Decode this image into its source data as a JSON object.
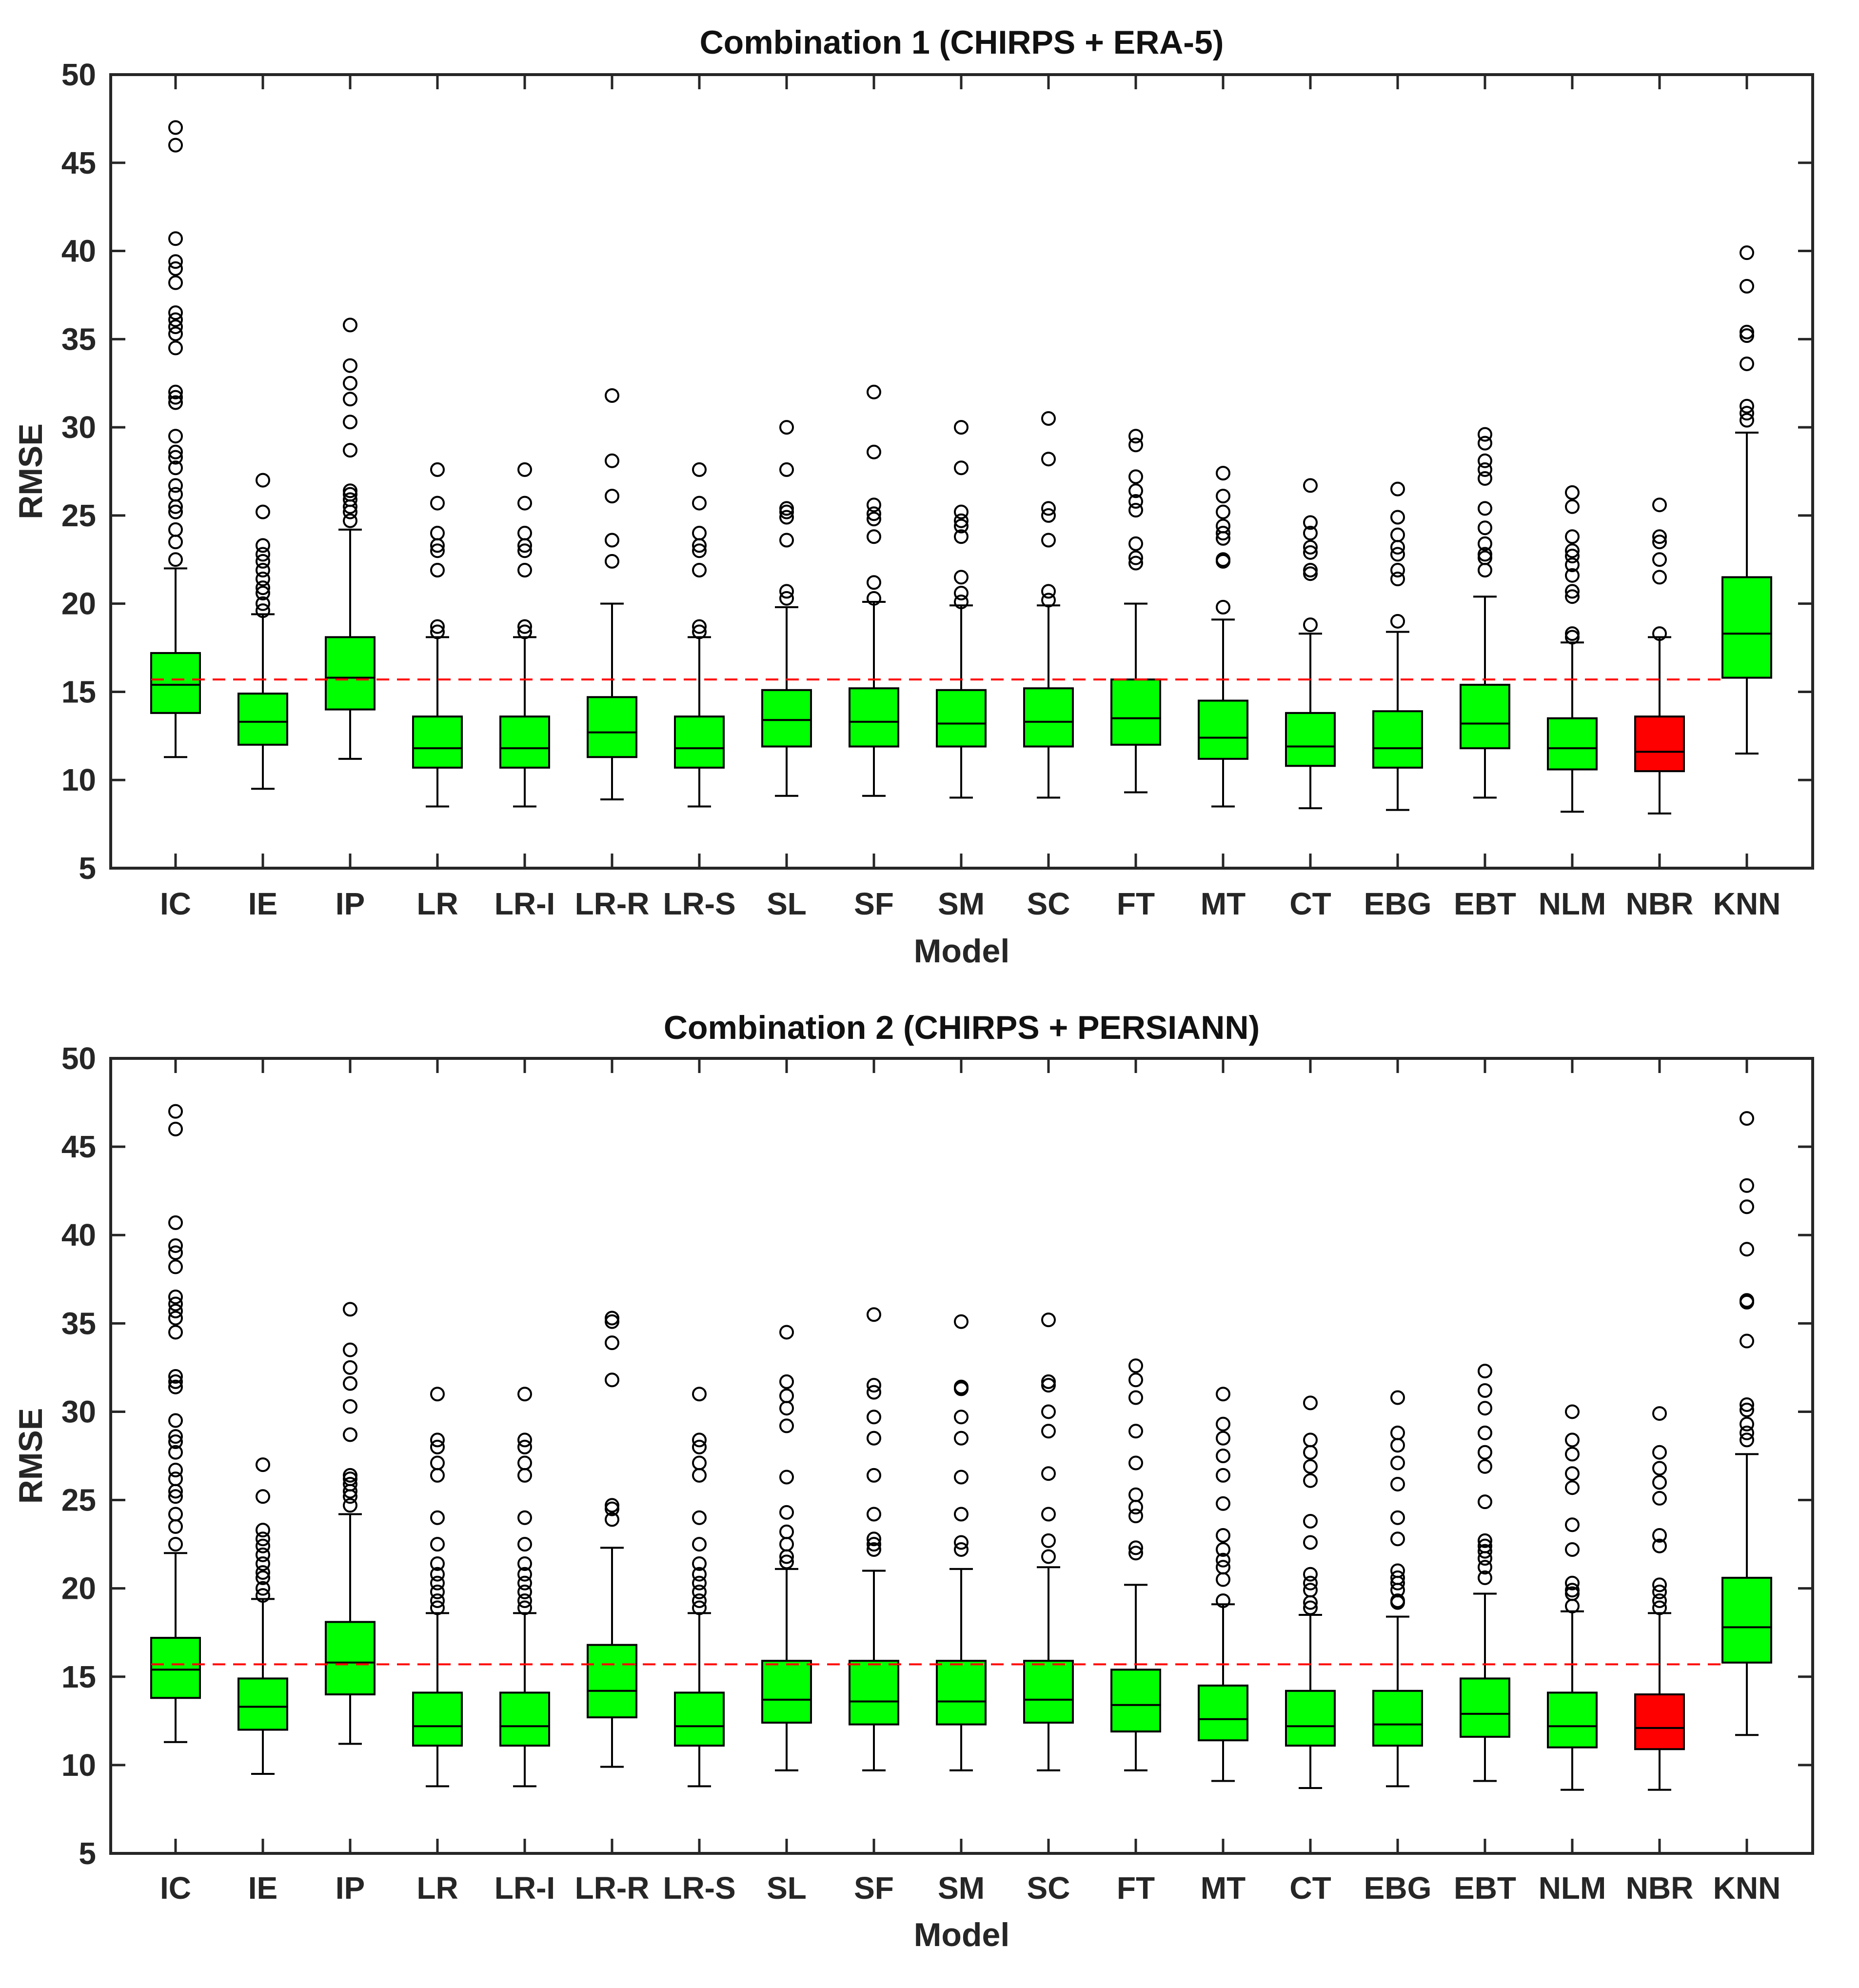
{
  "chart_data": [
    {
      "type": "boxplot",
      "title": "Combination 1 (CHIRPS + ERA-5)",
      "xlabel": "Model",
      "ylabel": "RMSE",
      "ylim": [
        5,
        50
      ],
      "yticks": [
        5,
        10,
        15,
        20,
        25,
        30,
        35,
        40,
        45,
        50
      ],
      "reference_line": 15.7,
      "colors": {
        "box": "#00ff00",
        "highlight": "#ff0000",
        "reference_line": "#ff0000"
      },
      "categories": [
        "IC",
        "IE",
        "IP",
        "LR",
        "LR-I",
        "LR-R",
        "LR-S",
        "SL",
        "SF",
        "SM",
        "SC",
        "FT",
        "MT",
        "CT",
        "EBG",
        "EBT",
        "NLM",
        "NBR",
        "KNN"
      ],
      "boxes": [
        {
          "name": "IC",
          "whisker_low": 11.3,
          "q1": 13.8,
          "median": 15.4,
          "q3": 17.2,
          "whisker_high": 22.0,
          "outliers": [
            22.5,
            23.5,
            24.2,
            25.2,
            25.5,
            26.2,
            26.7,
            27.7,
            28.3,
            28.6,
            29.5,
            31.4,
            31.7,
            32.0,
            34.5,
            35.3,
            35.7,
            36.1,
            36.5,
            38.2,
            39.0,
            39.4,
            40.7,
            46.0,
            47.0
          ],
          "highlight": false
        },
        {
          "name": "IE",
          "whisker_low": 9.5,
          "q1": 12.0,
          "median": 13.3,
          "q3": 14.9,
          "whisker_high": 19.4,
          "outliers": [
            19.6,
            20.0,
            20.6,
            20.9,
            21.4,
            21.9,
            22.4,
            22.8,
            23.3,
            25.2,
            27.0
          ],
          "highlight": false
        },
        {
          "name": "IP",
          "whisker_low": 11.2,
          "q1": 14.0,
          "median": 15.8,
          "q3": 18.1,
          "whisker_high": 24.2,
          "outliers": [
            24.7,
            25.2,
            25.5,
            25.9,
            26.2,
            26.4,
            28.7,
            30.3,
            31.6,
            32.5,
            33.5,
            35.8
          ],
          "highlight": false
        },
        {
          "name": "LR",
          "whisker_low": 8.5,
          "q1": 10.7,
          "median": 11.8,
          "q3": 13.6,
          "whisker_high": 18.1,
          "outliers": [
            18.4,
            18.7,
            21.9,
            23.0,
            23.3,
            24.0,
            25.7,
            27.6
          ],
          "highlight": false
        },
        {
          "name": "LR-I",
          "whisker_low": 8.5,
          "q1": 10.7,
          "median": 11.8,
          "q3": 13.6,
          "whisker_high": 18.1,
          "outliers": [
            18.4,
            18.7,
            21.9,
            23.0,
            23.3,
            24.0,
            25.7,
            27.6
          ],
          "highlight": false
        },
        {
          "name": "LR-R",
          "whisker_low": 8.9,
          "q1": 11.3,
          "median": 12.7,
          "q3": 14.7,
          "whisker_high": 20.0,
          "outliers": [
            22.4,
            23.6,
            26.1,
            28.1,
            31.8
          ],
          "highlight": false
        },
        {
          "name": "LR-S",
          "whisker_low": 8.5,
          "q1": 10.7,
          "median": 11.8,
          "q3": 13.6,
          "whisker_high": 18.1,
          "outliers": [
            18.4,
            18.7,
            21.9,
            23.0,
            23.3,
            24.0,
            25.7,
            27.6
          ],
          "highlight": false
        },
        {
          "name": "SL",
          "whisker_low": 9.1,
          "q1": 11.9,
          "median": 13.4,
          "q3": 15.1,
          "whisker_high": 19.8,
          "outliers": [
            20.3,
            20.7,
            23.6,
            24.9,
            25.2,
            25.4,
            27.6,
            30.0
          ],
          "highlight": false
        },
        {
          "name": "SF",
          "whisker_low": 9.1,
          "q1": 11.9,
          "median": 13.3,
          "q3": 15.2,
          "whisker_high": 20.1,
          "outliers": [
            20.3,
            21.2,
            23.8,
            24.8,
            25.1,
            25.6,
            28.6,
            32.0
          ],
          "highlight": false
        },
        {
          "name": "SM",
          "whisker_low": 9.0,
          "q1": 11.9,
          "median": 13.2,
          "q3": 15.1,
          "whisker_high": 19.9,
          "outliers": [
            20.1,
            20.6,
            21.5,
            23.8,
            24.4,
            24.7,
            25.2,
            27.7,
            30.0
          ],
          "highlight": false
        },
        {
          "name": "SC",
          "whisker_low": 9.0,
          "q1": 11.9,
          "median": 13.3,
          "q3": 15.2,
          "whisker_high": 19.9,
          "outliers": [
            20.2,
            20.7,
            23.6,
            25.0,
            25.4,
            28.2,
            30.5
          ],
          "highlight": false
        },
        {
          "name": "FT",
          "whisker_low": 9.3,
          "q1": 12.0,
          "median": 13.5,
          "q3": 15.7,
          "whisker_high": 20.0,
          "outliers": [
            22.3,
            22.6,
            23.4,
            25.3,
            25.8,
            26.4,
            27.2,
            29.0,
            29.5
          ],
          "highlight": false
        },
        {
          "name": "MT",
          "whisker_low": 8.5,
          "q1": 11.2,
          "median": 12.4,
          "q3": 14.5,
          "whisker_high": 19.1,
          "outliers": [
            19.8,
            22.4,
            22.5,
            23.7,
            24.0,
            24.4,
            25.2,
            26.1,
            27.4
          ],
          "highlight": false
        },
        {
          "name": "CT",
          "whisker_low": 8.4,
          "q1": 10.8,
          "median": 11.9,
          "q3": 13.8,
          "whisker_high": 18.3,
          "outliers": [
            18.8,
            21.7,
            21.9,
            22.9,
            23.2,
            24.0,
            24.6,
            26.7
          ],
          "highlight": false
        },
        {
          "name": "EBG",
          "whisker_low": 8.3,
          "q1": 10.7,
          "median": 11.8,
          "q3": 13.9,
          "whisker_high": 18.4,
          "outliers": [
            19.0,
            21.4,
            21.9,
            22.8,
            23.2,
            23.9,
            24.9,
            26.5
          ],
          "highlight": false
        },
        {
          "name": "EBT",
          "whisker_low": 9.0,
          "q1": 11.8,
          "median": 13.2,
          "q3": 15.4,
          "whisker_high": 20.4,
          "outliers": [
            21.9,
            22.6,
            22.8,
            23.4,
            24.3,
            25.4,
            27.1,
            27.6,
            28.1,
            29.1,
            29.6
          ],
          "highlight": false
        },
        {
          "name": "NLM",
          "whisker_low": 8.2,
          "q1": 10.6,
          "median": 11.8,
          "q3": 13.5,
          "whisker_high": 17.8,
          "outliers": [
            18.1,
            18.3,
            20.4,
            20.7,
            21.6,
            22.2,
            22.7,
            23.0,
            23.8,
            25.5,
            26.3
          ],
          "highlight": false
        },
        {
          "name": "NBR",
          "whisker_low": 8.1,
          "q1": 10.5,
          "median": 11.6,
          "q3": 13.6,
          "whisker_high": 18.1,
          "outliers": [
            18.3,
            21.5,
            22.5,
            23.5,
            23.8,
            25.6
          ],
          "highlight": true
        },
        {
          "name": "KNN",
          "whisker_low": 11.5,
          "q1": 15.8,
          "median": 18.3,
          "q3": 21.5,
          "whisker_high": 29.7,
          "outliers": [
            30.4,
            30.8,
            31.2,
            33.6,
            35.2,
            35.4,
            38.0,
            39.9
          ],
          "highlight": false
        }
      ]
    },
    {
      "type": "boxplot",
      "title": "Combination 2 (CHIRPS + PERSIANN)",
      "xlabel": "Model",
      "ylabel": "RMSE",
      "ylim": [
        5,
        50
      ],
      "yticks": [
        5,
        10,
        15,
        20,
        25,
        30,
        35,
        40,
        45,
        50
      ],
      "reference_line": 15.7,
      "colors": {
        "box": "#00ff00",
        "highlight": "#ff0000",
        "reference_line": "#ff0000"
      },
      "categories": [
        "IC",
        "IE",
        "IP",
        "LR",
        "LR-I",
        "LR-R",
        "LR-S",
        "SL",
        "SF",
        "SM",
        "SC",
        "FT",
        "MT",
        "CT",
        "EBG",
        "EBT",
        "NLM",
        "NBR",
        "KNN"
      ],
      "boxes": [
        {
          "name": "IC",
          "whisker_low": 11.3,
          "q1": 13.8,
          "median": 15.4,
          "q3": 17.2,
          "whisker_high": 22.0,
          "outliers": [
            22.5,
            23.5,
            24.2,
            25.2,
            25.5,
            26.2,
            26.7,
            27.7,
            28.3,
            28.6,
            29.5,
            31.4,
            31.7,
            32.0,
            34.5,
            35.3,
            35.7,
            36.1,
            36.5,
            38.2,
            39.0,
            39.4,
            40.7,
            46.0,
            47.0
          ],
          "highlight": false
        },
        {
          "name": "IE",
          "whisker_low": 9.5,
          "q1": 12.0,
          "median": 13.3,
          "q3": 14.9,
          "whisker_high": 19.4,
          "outliers": [
            19.6,
            20.0,
            20.6,
            20.9,
            21.4,
            21.9,
            22.4,
            22.8,
            23.3,
            25.2,
            27.0
          ],
          "highlight": false
        },
        {
          "name": "IP",
          "whisker_low": 11.2,
          "q1": 14.0,
          "median": 15.8,
          "q3": 18.1,
          "whisker_high": 24.2,
          "outliers": [
            24.7,
            25.2,
            25.5,
            25.9,
            26.2,
            26.4,
            28.7,
            30.3,
            31.6,
            32.5,
            33.5,
            35.8
          ],
          "highlight": false
        },
        {
          "name": "LR",
          "whisker_low": 8.8,
          "q1": 11.1,
          "median": 12.2,
          "q3": 14.1,
          "whisker_high": 18.6,
          "outliers": [
            18.9,
            19.3,
            19.8,
            20.3,
            20.8,
            21.4,
            22.5,
            24.0,
            26.4,
            27.1,
            28.0,
            28.4,
            31.0
          ],
          "highlight": false
        },
        {
          "name": "LR-I",
          "whisker_low": 8.8,
          "q1": 11.1,
          "median": 12.2,
          "q3": 14.1,
          "whisker_high": 18.6,
          "outliers": [
            18.9,
            19.3,
            19.8,
            20.3,
            20.8,
            21.4,
            22.5,
            24.0,
            26.4,
            27.1,
            28.0,
            28.4,
            31.0
          ],
          "highlight": false
        },
        {
          "name": "LR-R",
          "whisker_low": 9.9,
          "q1": 12.7,
          "median": 14.2,
          "q3": 16.8,
          "whisker_high": 22.3,
          "outliers": [
            23.9,
            24.5,
            24.7,
            31.8,
            33.9,
            35.1,
            35.3
          ],
          "highlight": false
        },
        {
          "name": "LR-S",
          "whisker_low": 8.8,
          "q1": 11.1,
          "median": 12.2,
          "q3": 14.1,
          "whisker_high": 18.6,
          "outliers": [
            18.9,
            19.3,
            19.8,
            20.3,
            20.8,
            21.4,
            22.5,
            24.0,
            26.4,
            27.1,
            28.0,
            28.4,
            31.0
          ],
          "highlight": false
        },
        {
          "name": "SL",
          "whisker_low": 9.7,
          "q1": 12.4,
          "median": 13.7,
          "q3": 15.9,
          "whisker_high": 21.1,
          "outliers": [
            21.5,
            21.8,
            22.5,
            23.2,
            24.3,
            26.3,
            29.2,
            30.2,
            30.9,
            31.7,
            34.5
          ],
          "highlight": false
        },
        {
          "name": "SF",
          "whisker_low": 9.7,
          "q1": 12.3,
          "median": 13.6,
          "q3": 15.9,
          "whisker_high": 21.0,
          "outliers": [
            22.2,
            22.5,
            22.8,
            24.2,
            26.4,
            28.5,
            29.7,
            31.1,
            31.5,
            35.5
          ],
          "highlight": false
        },
        {
          "name": "SM",
          "whisker_low": 9.7,
          "q1": 12.3,
          "median": 13.6,
          "q3": 15.9,
          "whisker_high": 21.1,
          "outliers": [
            22.2,
            22.6,
            24.2,
            26.3,
            28.5,
            29.7,
            31.3,
            31.4,
            35.1
          ],
          "highlight": false
        },
        {
          "name": "SC",
          "whisker_low": 9.7,
          "q1": 12.4,
          "median": 13.7,
          "q3": 15.9,
          "whisker_high": 21.2,
          "outliers": [
            21.8,
            22.7,
            24.2,
            26.5,
            28.9,
            30.0,
            31.5,
            31.7,
            35.2
          ],
          "highlight": false
        },
        {
          "name": "FT",
          "whisker_low": 9.7,
          "q1": 11.9,
          "median": 13.4,
          "q3": 15.4,
          "whisker_high": 20.2,
          "outliers": [
            22.0,
            22.3,
            24.1,
            24.6,
            25.3,
            27.1,
            28.9,
            30.8,
            31.8,
            32.6
          ],
          "highlight": false
        },
        {
          "name": "MT",
          "whisker_low": 9.1,
          "q1": 11.4,
          "median": 12.6,
          "q3": 14.5,
          "whisker_high": 19.1,
          "outliers": [
            19.3,
            20.5,
            21.2,
            21.6,
            22.2,
            23.0,
            24.8,
            26.4,
            27.5,
            28.5,
            29.3,
            31.0
          ],
          "highlight": false
        },
        {
          "name": "CT",
          "whisker_low": 8.7,
          "q1": 11.1,
          "median": 12.2,
          "q3": 14.2,
          "whisker_high": 18.5,
          "outliers": [
            18.9,
            19.2,
            19.9,
            20.3,
            20.8,
            22.6,
            23.8,
            26.1,
            26.9,
            27.7,
            28.4,
            30.5
          ],
          "highlight": false
        },
        {
          "name": "EBG",
          "whisker_low": 8.8,
          "q1": 11.1,
          "median": 12.3,
          "q3": 14.2,
          "whisker_high": 18.4,
          "outliers": [
            19.2,
            19.3,
            19.9,
            20.3,
            20.6,
            21.0,
            22.8,
            24.0,
            25.9,
            27.1,
            28.1,
            28.8,
            30.8
          ],
          "highlight": false
        },
        {
          "name": "EBT",
          "whisker_low": 9.1,
          "q1": 11.6,
          "median": 12.9,
          "q3": 14.9,
          "whisker_high": 19.7,
          "outliers": [
            20.6,
            21.2,
            21.7,
            22.1,
            22.4,
            22.7,
            24.9,
            26.9,
            27.7,
            28.8,
            30.2,
            31.2,
            32.3
          ],
          "highlight": false
        },
        {
          "name": "NLM",
          "whisker_low": 8.6,
          "q1": 11.0,
          "median": 12.2,
          "q3": 14.1,
          "whisker_high": 18.7,
          "outliers": [
            19.0,
            19.7,
            19.9,
            20.3,
            22.2,
            23.6,
            25.7,
            26.5,
            27.6,
            28.4,
            30.0
          ],
          "highlight": false
        },
        {
          "name": "NBR",
          "whisker_low": 8.6,
          "q1": 10.9,
          "median": 12.1,
          "q3": 14.0,
          "whisker_high": 18.6,
          "outliers": [
            18.9,
            19.3,
            19.8,
            20.2,
            22.4,
            23.0,
            25.1,
            26.0,
            26.8,
            27.7,
            29.9
          ],
          "highlight": true
        },
        {
          "name": "KNN",
          "whisker_low": 11.7,
          "q1": 15.8,
          "median": 17.8,
          "q3": 20.6,
          "whisker_high": 27.6,
          "outliers": [
            28.4,
            28.8,
            29.3,
            30.1,
            30.4,
            34.0,
            36.2,
            36.3,
            39.2,
            41.6,
            42.8,
            46.6
          ],
          "highlight": false
        }
      ]
    }
  ]
}
